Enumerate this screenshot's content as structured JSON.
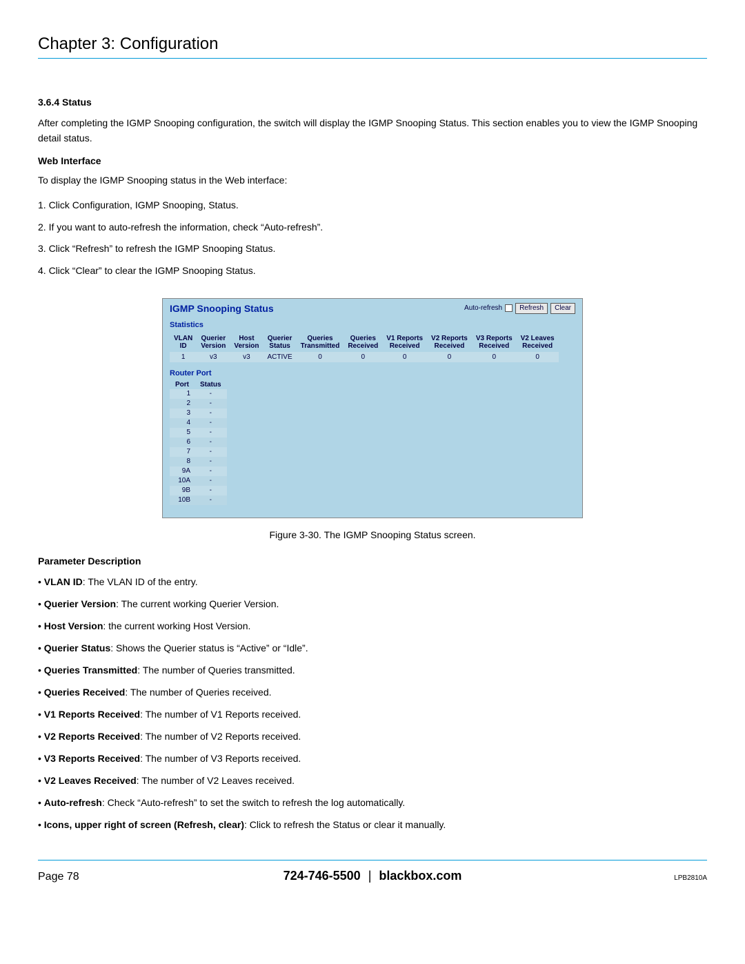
{
  "chapter_title": "Chapter 3: Configuration",
  "section": {
    "number": "3.6.4 Status",
    "intro": "After completing the IGMP Snooping configuration, the switch will display the IGMP Snooping Status. This section enables you to view the IGMP Snooping detail status.",
    "web_interface_head": "Web Interface",
    "web_interface_intro": "To display the IGMP Snooping status in the Web interface:",
    "steps": [
      "1. Click Configuration, IGMP Snooping, Status.",
      "2. If you want to auto-refresh the information, check “Auto-refresh”.",
      "3. Click “Refresh” to refresh the IGMP Snooping Status.",
      "4. Click “Clear” to clear the IGMP Snooping Status."
    ]
  },
  "screenshot": {
    "title": "IGMP Snooping Status",
    "auto_refresh_label": "Auto-refresh",
    "refresh_btn": "Refresh",
    "clear_btn": "Clear",
    "statistics_label": "Statistics",
    "stats_headers": [
      "VLAN ID",
      "Querier Version",
      "Host Version",
      "Querier Status",
      "Queries Transmitted",
      "Queries Received",
      "V1 Reports Received",
      "V2 Reports Received",
      "V3 Reports Received",
      "V2 Leaves Received"
    ],
    "stats_row": [
      "1",
      "v3",
      "v3",
      "ACTIVE",
      "0",
      "0",
      "0",
      "0",
      "0",
      "0"
    ],
    "router_port_label": "Router Port",
    "router_headers": [
      "Port",
      "Status"
    ],
    "router_rows": [
      [
        "1",
        "-"
      ],
      [
        "2",
        "-"
      ],
      [
        "3",
        "-"
      ],
      [
        "4",
        "-"
      ],
      [
        "5",
        "-"
      ],
      [
        "6",
        "-"
      ],
      [
        "7",
        "-"
      ],
      [
        "8",
        "-"
      ],
      [
        "9A",
        "-"
      ],
      [
        "10A",
        "-"
      ],
      [
        "9B",
        "-"
      ],
      [
        "10B",
        "-"
      ]
    ]
  },
  "figure_caption": "Figure 3-30. The IGMP Snooping Status screen.",
  "param_head": "Parameter Description",
  "params": [
    {
      "term": "VLAN ID",
      "desc": ": The VLAN ID of the entry."
    },
    {
      "term": "Querier Version",
      "desc": ": The current working Querier Version."
    },
    {
      "term": "Host Version",
      "desc": ": the current working Host Version."
    },
    {
      "term": "Querier Status",
      "desc": ": Shows the Querier status is “Active” or “Idle”."
    },
    {
      "term": "Queries Transmitted",
      "desc": ": The number of Queries transmitted."
    },
    {
      "term": "Queries Received",
      "desc": ": The number of Queries received."
    },
    {
      "term": "V1 Reports Received",
      "desc": ": The number of V1 Reports received."
    },
    {
      "term": "V2 Reports Received",
      "desc": ": The number of V2 Reports received."
    },
    {
      "term": "V3 Reports Received",
      "desc": ": The number of V3 Reports received."
    },
    {
      "term": "V2 Leaves Received",
      "desc": ": The number of V2 Leaves received."
    },
    {
      "term": "Auto-refresh",
      "desc": ": Check “Auto-refresh” to set the switch to refresh the log automatically."
    },
    {
      "term": "Icons, upper right of screen (Refresh, clear)",
      "desc": ": Click to refresh the Status or clear it manually."
    }
  ],
  "footer": {
    "page": "Page 78",
    "phone": "724-746-5500",
    "site": "blackbox.com",
    "part": "LPB2810A"
  }
}
